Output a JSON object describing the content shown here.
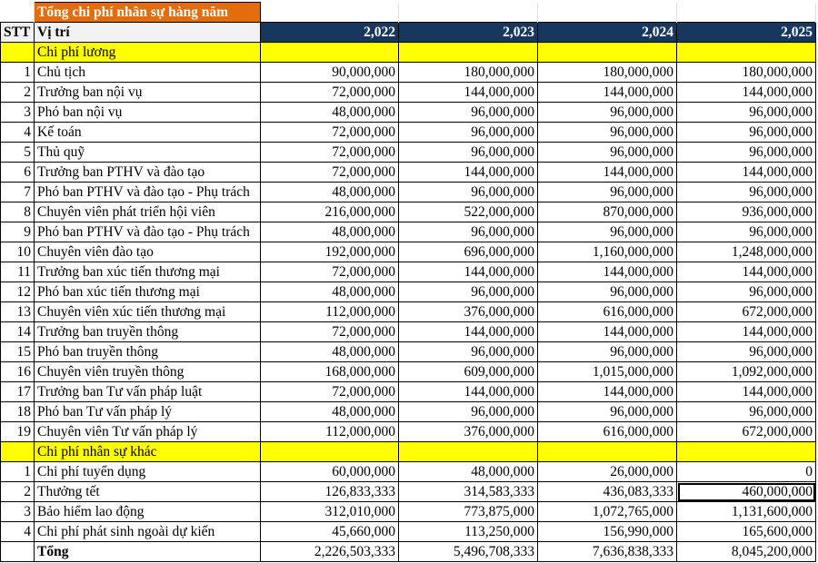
{
  "title": "Tổng chi phí nhân sự hàng năm",
  "headers": {
    "stt": "STT",
    "position": "Vị trí",
    "years": [
      "2,022",
      "2,023",
      "2,024",
      "2,025"
    ]
  },
  "sections": [
    {
      "name": "Chi phí lương",
      "rows": [
        [
          "1",
          "Chủ tịch",
          "90,000,000",
          "180,000,000",
          "180,000,000",
          "180,000,000"
        ],
        [
          "2",
          "Trưởng ban nội vụ",
          "72,000,000",
          "144,000,000",
          "144,000,000",
          "144,000,000"
        ],
        [
          "3",
          "Phó ban nội vụ",
          "48,000,000",
          "96,000,000",
          "96,000,000",
          "96,000,000"
        ],
        [
          "4",
          "Kế toán",
          "72,000,000",
          "96,000,000",
          "96,000,000",
          "96,000,000"
        ],
        [
          "5",
          "Thủ quỹ",
          "72,000,000",
          "96,000,000",
          "96,000,000",
          "96,000,000"
        ],
        [
          "6",
          "Trưởng ban PTHV và đào tạo",
          "72,000,000",
          "144,000,000",
          "144,000,000",
          "144,000,000"
        ],
        [
          "7",
          "Phó ban PTHV và đào tạo - Phụ trách",
          "48,000,000",
          "96,000,000",
          "96,000,000",
          "96,000,000"
        ],
        [
          "8",
          "Chuyên viên phát triển hội viên",
          "216,000,000",
          "522,000,000",
          "870,000,000",
          "936,000,000"
        ],
        [
          "9",
          "Phó ban PTHV và đào tạo - Phụ trách",
          "48,000,000",
          "96,000,000",
          "96,000,000",
          "96,000,000"
        ],
        [
          "10",
          "Chuyên viên đào tạo",
          "192,000,000",
          "696,000,000",
          "1,160,000,000",
          "1,248,000,000"
        ],
        [
          "11",
          "Trưởng ban xúc tiến thương mại",
          "72,000,000",
          "144,000,000",
          "144,000,000",
          "144,000,000"
        ],
        [
          "12",
          "Phó ban xúc tiến thương mại",
          "48,000,000",
          "96,000,000",
          "96,000,000",
          "96,000,000"
        ],
        [
          "13",
          "Chuyên viên xúc tiến thương mại",
          "112,000,000",
          "376,000,000",
          "616,000,000",
          "672,000,000"
        ],
        [
          "14",
          "Trưởng ban truyền thông",
          "72,000,000",
          "144,000,000",
          "144,000,000",
          "144,000,000"
        ],
        [
          "15",
          "Phó ban truyền thông",
          "48,000,000",
          "96,000,000",
          "96,000,000",
          "96,000,000"
        ],
        [
          "16",
          "Chuyên viên truyền thông",
          "168,000,000",
          "609,000,000",
          "1,015,000,000",
          "1,092,000,000"
        ],
        [
          "17",
          "Trưởng ban Tư vấn pháp luật",
          "72,000,000",
          "144,000,000",
          "144,000,000",
          "144,000,000"
        ],
        [
          "18",
          "Phó ban Tư vấn pháp lý",
          "48,000,000",
          "96,000,000",
          "96,000,000",
          "96,000,000"
        ],
        [
          "19",
          "Chuyên viên Tư vấn pháp lý",
          "112,000,000",
          "376,000,000",
          "616,000,000",
          "672,000,000"
        ]
      ]
    },
    {
      "name": "Chi phí nhân sự khác",
      "rows": [
        [
          "1",
          "Chi phí tuyển dụng",
          "60,000,000",
          "48,000,000",
          "26,000,000",
          "0"
        ],
        [
          "2",
          "Thưởng tết",
          "126,833,333",
          "314,583,333",
          "436,083,333",
          "460,000,000"
        ],
        [
          "3",
          "Bảo hiểm lao động",
          "312,010,000",
          "773,875,000",
          "1,072,765,000",
          "1,131,600,000"
        ],
        [
          "4",
          "Chi phí phát sinh ngoài dự kiến",
          "45,660,000",
          "113,250,000",
          "156,990,000",
          "165,600,000"
        ]
      ]
    }
  ],
  "total": {
    "label": "Tổng",
    "values": [
      "2,226,503,333",
      "5,496,708,333",
      "7,636,838,333",
      "8,045,200,000"
    ]
  }
}
